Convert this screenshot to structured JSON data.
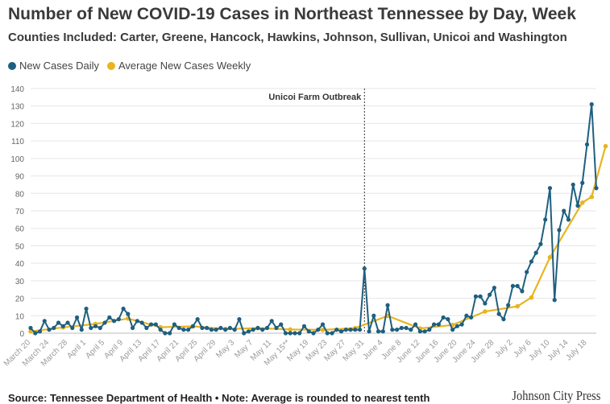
{
  "chart_data": {
    "type": "line",
    "title": "Number of New COVID-19 Cases in Northeast Tennessee by Day, Week",
    "subtitle": "Counties Included: Carter, Greene, Hancock, Hawkins, Johnson, Sullivan, Unicoi and Washington",
    "ylim": [
      0,
      140
    ],
    "yticks": [
      0,
      10,
      20,
      30,
      40,
      50,
      60,
      70,
      80,
      90,
      100,
      110,
      120,
      130,
      140
    ],
    "x_tick_labels": [
      "March 20",
      "March 24",
      "March 28",
      "April 1",
      "April 5",
      "April 9",
      "April 13",
      "April 17",
      "April 21",
      "April 25",
      "April 29",
      "May 3",
      "May 7",
      "May 11",
      "May 15**",
      "May 19",
      "May 23",
      "May 27",
      "May 31",
      "June 4",
      "June 8",
      "June 12",
      "June 16",
      "June 20",
      "June 24",
      "June 28",
      "July 2",
      "July 6",
      "July 10",
      "July 14",
      "July 18"
    ],
    "annotation": {
      "label": "Unicoi Farm Outbreak",
      "day_index": 72
    },
    "series": [
      {
        "name": "New Cases Daily",
        "color": "#1f5f7f",
        "values": [
          3,
          0,
          1,
          7,
          2,
          3,
          6,
          4,
          6,
          3,
          9,
          2,
          14,
          3,
          4,
          3,
          6,
          9,
          7,
          8,
          14,
          11,
          3,
          7,
          6,
          3,
          5,
          5,
          2,
          0,
          0,
          5,
          3,
          2,
          2,
          4,
          8,
          3,
          3,
          2,
          2,
          3,
          2,
          3,
          2,
          8,
          0,
          1,
          2,
          3,
          2,
          3,
          7,
          3,
          5,
          0,
          0,
          0,
          0,
          4,
          1,
          0,
          2,
          5,
          0,
          0,
          2,
          1,
          2,
          2,
          2,
          2,
          37,
          1,
          10,
          1,
          1,
          16,
          2,
          2,
          3,
          3,
          2,
          5,
          1,
          1,
          2,
          5,
          5,
          9,
          8,
          2,
          4,
          5,
          10,
          9,
          21,
          21,
          17,
          22,
          26,
          11,
          8,
          16,
          27,
          27,
          24,
          35,
          41,
          46,
          51,
          65,
          83,
          19,
          59,
          70,
          65,
          85,
          73,
          86,
          108,
          131,
          83
        ]
      },
      {
        "name": "Average New Cases Weekly",
        "color": "#e8b421",
        "points": [
          [
            0,
            1
          ],
          [
            7,
            3.3
          ],
          [
            14,
            5.3
          ],
          [
            21,
            8.4
          ],
          [
            28,
            3.4
          ],
          [
            35,
            3.9
          ],
          [
            42,
            2.4
          ],
          [
            49,
            2.9
          ],
          [
            56,
            2.1
          ],
          [
            63,
            1.9
          ],
          [
            70,
            2.9
          ],
          [
            77,
            9.9
          ],
          [
            84,
            2.7
          ],
          [
            91,
            4.7
          ],
          [
            98,
            12.4
          ],
          [
            105,
            15.4
          ],
          [
            108,
            20.4
          ],
          [
            112,
            43.4
          ],
          [
            119,
            74.7
          ],
          [
            121,
            78
          ],
          [
            124,
            107
          ]
        ]
      }
    ],
    "source": "Source: Tennessee Department of Health • Note: Average is rounded to nearest tenth",
    "brand": "Johnson City Press"
  }
}
